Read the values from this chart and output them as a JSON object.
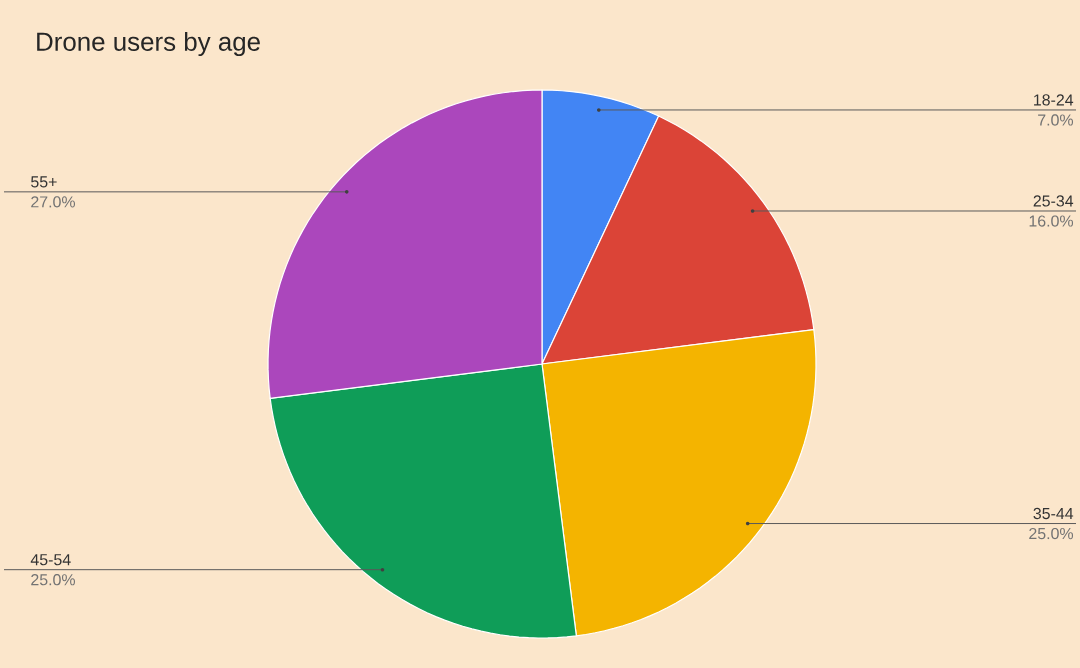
{
  "chart_data": {
    "type": "pie",
    "title": "Drone users by age",
    "categories": [
      "18-24",
      "25-34",
      "35-44",
      "45-54",
      "55+"
    ],
    "values": [
      7,
      16,
      25,
      25,
      27
    ],
    "value_labels": [
      "7.0%",
      "16.0%",
      "25.0%",
      "25.0%",
      "27.0%"
    ],
    "colors": [
      "#4285f4",
      "#db4437",
      "#f4b400",
      "#0f9d58",
      "#ab47bc"
    ]
  }
}
